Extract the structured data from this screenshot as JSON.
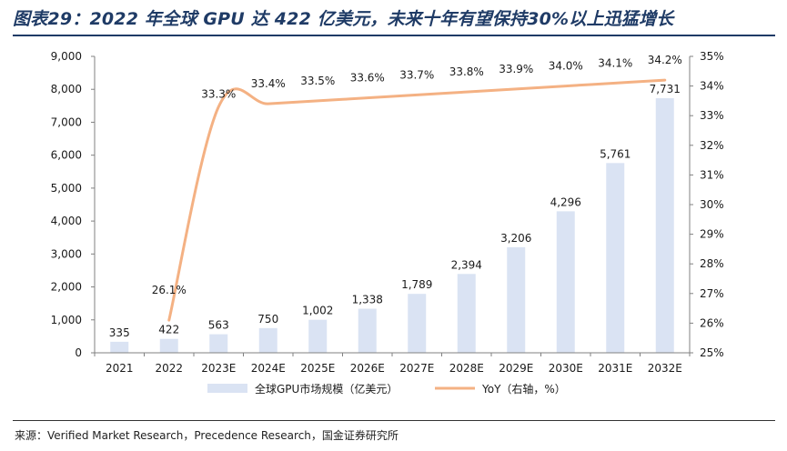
{
  "page": {
    "title": "图表29：2022 年全球 GPU 达 422 亿美元，未来十年有望保持30%以上迅猛增长",
    "source": "来源：Verified Market Research，Precedence Research，国金证券研究所"
  },
  "colors": {
    "title": "#1f3b66",
    "bar": "#dae3f3",
    "line": "#f4b183",
    "axis": "#808080",
    "text": "#1a1a1a"
  },
  "chart_data": {
    "type": "bar",
    "categories": [
      "2021",
      "2022",
      "2023E",
      "2024E",
      "2025E",
      "2026E",
      "2027E",
      "2028E",
      "2029E",
      "2030E",
      "2031E",
      "2032E"
    ],
    "series": [
      {
        "name": "全球GPU市场规模（亿美元）",
        "type": "bar",
        "axis": "left",
        "values": [
          335,
          422,
          563,
          750,
          1002,
          1338,
          1789,
          2394,
          3206,
          4296,
          5761,
          7731
        ],
        "labels": [
          "335",
          "422",
          "563",
          "750",
          "1,002",
          "1,338",
          "1,789",
          "2,394",
          "3,206",
          "4,296",
          "5,761",
          "7,731"
        ]
      },
      {
        "name": "YoY（右轴，%）",
        "type": "line",
        "axis": "right",
        "values": [
          null,
          26.1,
          33.3,
          33.4,
          33.5,
          33.6,
          33.7,
          33.8,
          33.9,
          34.0,
          34.1,
          34.2
        ],
        "labels": [
          "",
          "26.1%",
          "33.3%",
          "33.4%",
          "33.5%",
          "33.6%",
          "33.7%",
          "33.8%",
          "33.9%",
          "34.0%",
          "34.1%",
          "34.2%"
        ]
      }
    ],
    "y_left": {
      "range": [
        0,
        9000
      ],
      "ticks": [
        0,
        1000,
        2000,
        3000,
        4000,
        5000,
        6000,
        7000,
        8000,
        9000
      ],
      "tick_labels": [
        "0",
        "1,000",
        "2,000",
        "3,000",
        "4,000",
        "5,000",
        "6,000",
        "7,000",
        "8,000",
        "9,000"
      ]
    },
    "y_right": {
      "range": [
        25,
        35
      ],
      "ticks": [
        25,
        26,
        27,
        28,
        29,
        30,
        31,
        32,
        33,
        34,
        35
      ],
      "tick_labels": [
        "25%",
        "26%",
        "27%",
        "28%",
        "29%",
        "30%",
        "31%",
        "32%",
        "33%",
        "34%",
        "35%"
      ]
    },
    "legend_position": "bottom",
    "grid": false
  }
}
